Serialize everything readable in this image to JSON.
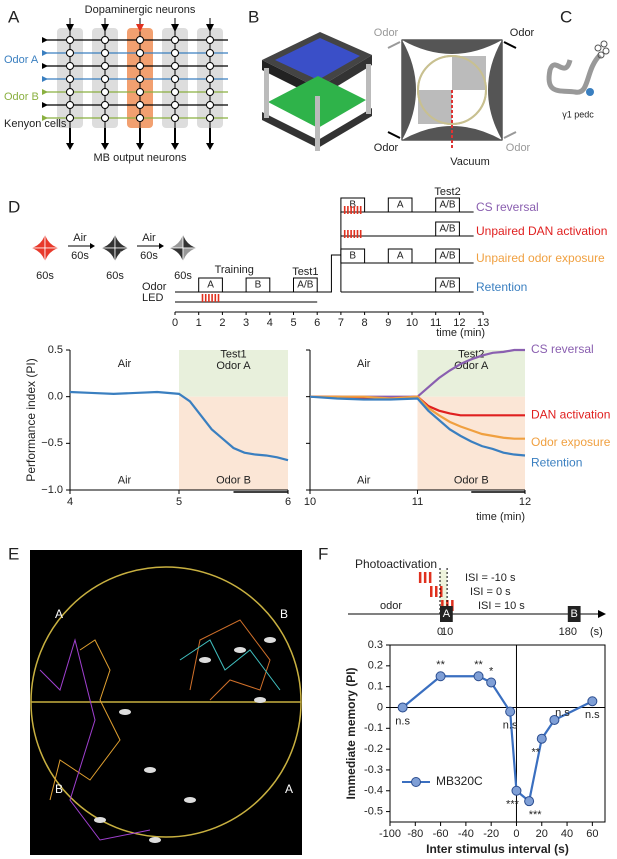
{
  "panel_labels": [
    "A",
    "B",
    "C",
    "D",
    "E",
    "F"
  ],
  "panel_a": {
    "top": "Dopaminergic neurons",
    "odor_a": "Odor A",
    "odor_b": "Odor B",
    "kenyon": "Kenyon cells",
    "bottom": "MB output neurons"
  },
  "panel_b": {
    "odors": [
      "Odor",
      "Odor",
      "Odor",
      "Odor"
    ],
    "vacuum": "Vacuum"
  },
  "panel_c": {
    "label": "γ1 pedc"
  },
  "panel_d": {
    "circles": [
      [
        "A",
        "A",
        "A",
        "A"
      ],
      [
        "B",
        "B",
        "B",
        "B"
      ],
      [
        "A",
        "B",
        "B",
        "A"
      ]
    ],
    "durations": [
      "60s",
      "60s",
      "60s"
    ],
    "air": [
      "Air",
      "Air"
    ],
    "air_durations": [
      "60s",
      "60s"
    ],
    "odor": "Odor",
    "led": "LED",
    "training": "Training",
    "test1": "Test1",
    "test2": "Test2",
    "training_boxes": [
      "A",
      "B"
    ],
    "test1_box": "A/B",
    "rows": [
      {
        "name": "CS reversal",
        "color": "#8a5fb0",
        "boxes": [
          "B",
          "A",
          "A/B"
        ]
      },
      {
        "name": "Unpaired DAN activation",
        "color": "#e02020",
        "boxes": [
          "A/B"
        ]
      },
      {
        "name": "Unpaired odor exposure",
        "color": "#f0a040",
        "boxes": [
          "B",
          "A",
          "A/B"
        ]
      },
      {
        "name": "Retention",
        "color": "#3a7fc0",
        "boxes": [
          "A/B"
        ]
      }
    ],
    "time_ticks": [
      0,
      1,
      2,
      3,
      4,
      5,
      6,
      7,
      8,
      9,
      10,
      11,
      12,
      13
    ],
    "time_label": "time (min)"
  },
  "panel_e": {
    "quadrants": [
      "A",
      "B",
      "B",
      "A"
    ]
  },
  "panel_f": {
    "title": "Photoactivation",
    "isi": [
      "ISI = -10 s",
      "ISI = 0 s",
      "ISI = 10 s"
    ],
    "odor": "odor",
    "boxes": [
      "A",
      "B"
    ],
    "ticks": [
      0,
      10,
      180
    ],
    "unit": "(s)"
  },
  "chart_data": [
    {
      "type": "line",
      "ylabel": "Performance index (PI)",
      "annotations": [
        "Air",
        "Test1",
        "Odor A",
        "Air",
        "Odor B"
      ],
      "x": [
        4,
        4.2,
        4.4,
        4.6,
        4.8,
        5.0,
        5.1,
        5.2,
        5.3,
        5.4,
        5.5,
        5.6,
        5.7,
        5.8,
        5.9,
        6.0
      ],
      "series": [
        {
          "color": "#3a7fc0",
          "values": [
            0.05,
            0.04,
            0.03,
            0.04,
            0.05,
            0.03,
            -0.05,
            -0.2,
            -0.35,
            -0.45,
            -0.55,
            -0.6,
            -0.62,
            -0.63,
            -0.65,
            -0.68
          ]
        }
      ],
      "xlim": [
        4,
        6
      ],
      "xticks": [
        4,
        5,
        6
      ],
      "ylim": [
        -1,
        0.5
      ],
      "yticks": [
        0.5,
        {
          "value": 0,
          "label": "0.0"
        },
        {
          "value": -0.5,
          "label": "−0.5"
        },
        {
          "value": -1,
          "label": "−1.0"
        }
      ]
    },
    {
      "type": "line",
      "xlabel": "time (min)",
      "annotations": [
        "Air",
        "Test2",
        "Odor A",
        "Air",
        "Odor B"
      ],
      "x": [
        10,
        10.25,
        10.5,
        10.75,
        11,
        11.1,
        11.2,
        11.3,
        11.4,
        11.5,
        11.6,
        11.7,
        11.8,
        11.9,
        12
      ],
      "series": [
        {
          "name": "CS reversal",
          "color": "#8a5fb0",
          "values": [
            0,
            0,
            0,
            0,
            0,
            0.1,
            0.2,
            0.28,
            0.35,
            0.4,
            0.44,
            0.47,
            0.48,
            0.5,
            0.5
          ]
        },
        {
          "name": "DAN activation",
          "color": "#e02020",
          "values": [
            0,
            0,
            -0.02,
            -0.02,
            0,
            -0.1,
            -0.15,
            -0.18,
            -0.2,
            -0.2,
            -0.2,
            -0.2,
            -0.2,
            -0.2,
            -0.2
          ]
        },
        {
          "name": "Odor exposure",
          "color": "#f0a040",
          "values": [
            0,
            0,
            0,
            -0.02,
            0,
            -0.12,
            -0.2,
            -0.27,
            -0.32,
            -0.36,
            -0.4,
            -0.42,
            -0.44,
            -0.45,
            -0.45
          ]
        },
        {
          "name": "Retention",
          "color": "#3a7fc0",
          "values": [
            0,
            -0.02,
            -0.03,
            -0.03,
            -0.02,
            -0.15,
            -0.25,
            -0.35,
            -0.42,
            -0.48,
            -0.53,
            -0.56,
            -0.6,
            -0.62,
            -0.63
          ]
        }
      ],
      "xlim": [
        10,
        12
      ],
      "xticks": [
        10,
        11,
        12
      ],
      "ylim": [
        -1,
        0.5
      ],
      "yticks": [
        0.5,
        0,
        -0.5,
        -1
      ]
    },
    {
      "type": "line",
      "xlabel": "Inter stimulus interval (s)",
      "ylabel": "Immediate memory (PI)",
      "x": [
        -90,
        -60,
        -30,
        -20,
        -5,
        0,
        10,
        20,
        30,
        60
      ],
      "series": [
        {
          "name": "MB320C",
          "color": "#3a6fc0",
          "values": [
            0,
            0.15,
            0.15,
            0.12,
            -0.02,
            -0.4,
            -0.45,
            -0.15,
            -0.06,
            0.03
          ]
        }
      ],
      "significance": [
        "n.s",
        "**",
        "**",
        "*",
        "n.s",
        "***",
        "***",
        "**",
        "n.s",
        "n.s"
      ],
      "xlim": [
        -100,
        70
      ],
      "xticks": [
        -100,
        -80,
        -60,
        -40,
        -20,
        0,
        20,
        40,
        60
      ],
      "ylim": [
        -0.55,
        0.3
      ],
      "yticks": [
        0.3,
        0.2,
        0.1,
        0,
        -0.1,
        -0.2,
        -0.3,
        -0.4,
        -0.5
      ]
    }
  ]
}
